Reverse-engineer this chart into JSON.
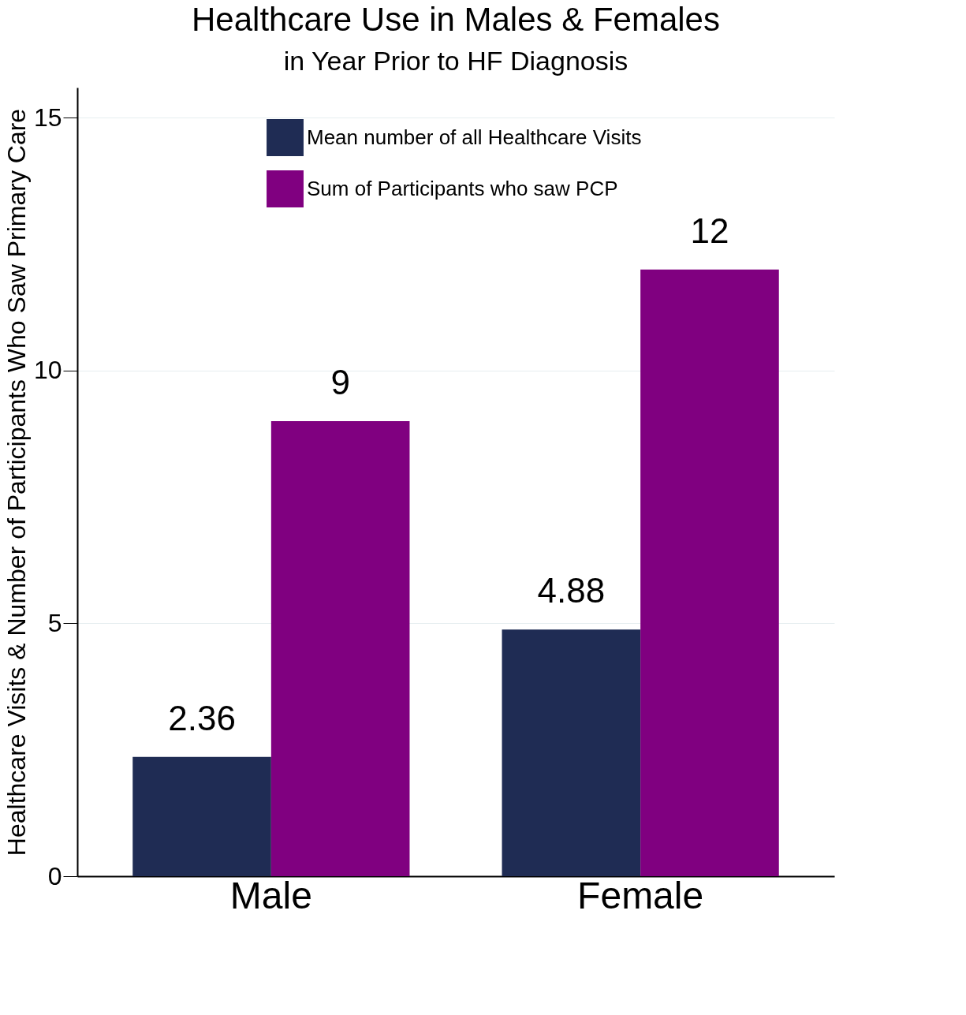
{
  "chart_data": {
    "type": "bar",
    "title": "Healthcare Use in Males & Females",
    "subtitle": "in Year Prior to HF Diagnosis",
    "ylabel": "Healthcare Visits & Number of Participants Who Saw Primary Care",
    "categories": [
      "Male",
      "Female"
    ],
    "series": [
      {
        "name": "Mean number of all Healthcare Visits",
        "color": "#1f2c54",
        "values": [
          2.36,
          4.88
        ]
      },
      {
        "name": "Sum of Participants who saw PCP",
        "color": "#800080",
        "values": [
          9,
          12
        ]
      }
    ],
    "ylim": [
      0,
      15.6
    ],
    "yticks": [
      0,
      5,
      10,
      15
    ],
    "grid": "y",
    "legend": "top",
    "data_labels": true
  }
}
